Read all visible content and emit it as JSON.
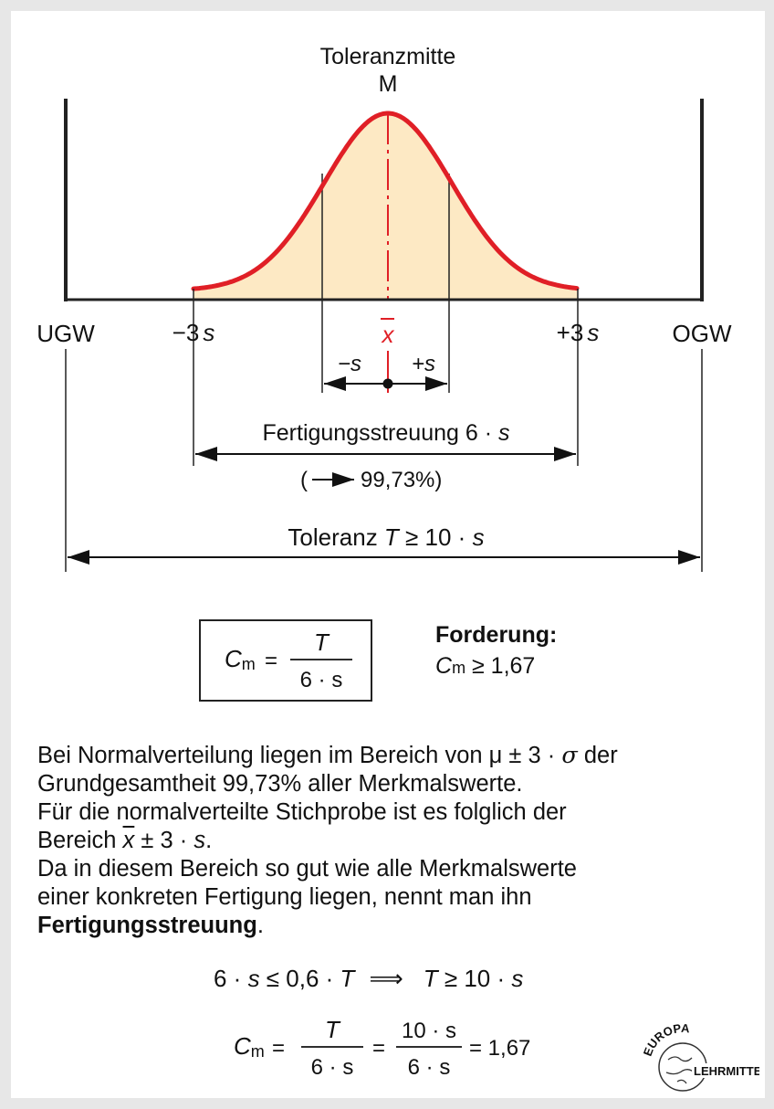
{
  "diagram": {
    "center_label": "Toleranzmitte",
    "center_symbol": "M",
    "lower_limit": "UGW",
    "upper_limit": "OGW",
    "minus_3s": "−3",
    "plus_3s": "+3",
    "s": "s",
    "xbar": "x",
    "minus_s": "−s",
    "plus_s": "+s",
    "spread_label": "Fertigungsstreuung  6 · ",
    "spread_pct": "99,73%)",
    "tolerance_label": "Toleranz ",
    "tolerance_T": "T",
    "tolerance_rel": " ≥ 10 · ",
    "colors": {
      "curve": "#e01f26",
      "fill": "#fde9c4",
      "axis": "#222222",
      "center_line": "#e01f26"
    }
  },
  "formula_box": {
    "C": "C",
    "sub": "m",
    "eq": "=",
    "numerator": "T",
    "denominator": "6 · s"
  },
  "requirement": {
    "title": "Forderung:",
    "C": "C",
    "sub": "m",
    "rel": " ≥ 1,67"
  },
  "paragraph": {
    "l1a": "Bei Normalverteilung liegen im Bereich von μ ± 3 · ",
    "l1_sigma": "σ",
    "l1b": " der",
    "l2": "Grundgesamtheit 99,73% aller Merkmalswerte.",
    "l3": "Für die normalverteilte Stichprobe ist es folglich der",
    "l4a": "Bereich ",
    "l4_x": "x",
    "l4b": " ± 3 · ",
    "l4_s": "s",
    "l4c": ".",
    "l5": "Da in diesem Bereich so gut wie alle Merkmalswerte",
    "l6": "einer konkreten Fertigung liegen, nennt man ihn",
    "l7_bold": "Fertigungsstreuung",
    "l7_end": "."
  },
  "equations": {
    "e1_left": "6 · ",
    "e1_s": "s",
    "e1_mid": " ≤ 0,6 · ",
    "e1_T": "T",
    "implies": "⟹",
    "e1_T2": "T",
    "e1_right": " ≥ 10 · ",
    "e1_s2": "s",
    "e2_C": "C",
    "e2_sub": "m",
    "e2_eq": "=",
    "e2_num1": "T",
    "e2_den1": "6 · s",
    "e2_eq2": "=",
    "e2_num2": "10 · s",
    "e2_den2": "6 · s",
    "e2_result": "= 1,67"
  },
  "logo": {
    "top": "EUROPA",
    "bottom": "LEHRMITTEL"
  }
}
